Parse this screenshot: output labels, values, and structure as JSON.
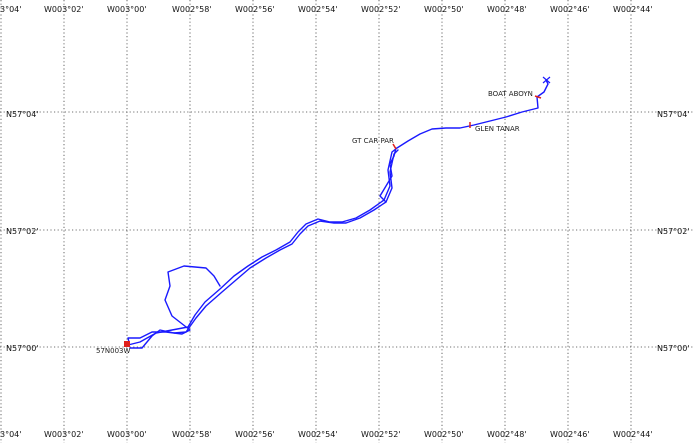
{
  "map": {
    "longitude_ticks_top": [
      "3°04'",
      "W003°02'",
      "W003°00'",
      "W002°58'",
      "W002°56'",
      "W002°54'",
      "W002°52'",
      "W002°50'",
      "W002°48'",
      "W002°46'",
      "W002°44'"
    ],
    "longitude_ticks_bottom": [
      "3°04'",
      "W003°02'",
      "W003°00'",
      "W002°58'",
      "W002°56'",
      "W002°54'",
      "W002°52'",
      "W002°50'",
      "W002°48'",
      "W002°46'",
      "W002°44'"
    ],
    "latitude_ticks_left": [
      "N57°04'",
      "N57°02'",
      "N57°00'"
    ],
    "latitude_ticks_right": [
      "N57°04'",
      "N57°02'",
      "N57°00'"
    ],
    "colors": {
      "track": "#1a1aff",
      "marker": "#e0201c",
      "grid": "#444444"
    }
  },
  "waypoints": [
    {
      "label": "BOAT ABOYN"
    },
    {
      "label": "GT CAR PAR"
    },
    {
      "label": "GLEN TANAR"
    },
    {
      "label": "57N003W"
    }
  ]
}
